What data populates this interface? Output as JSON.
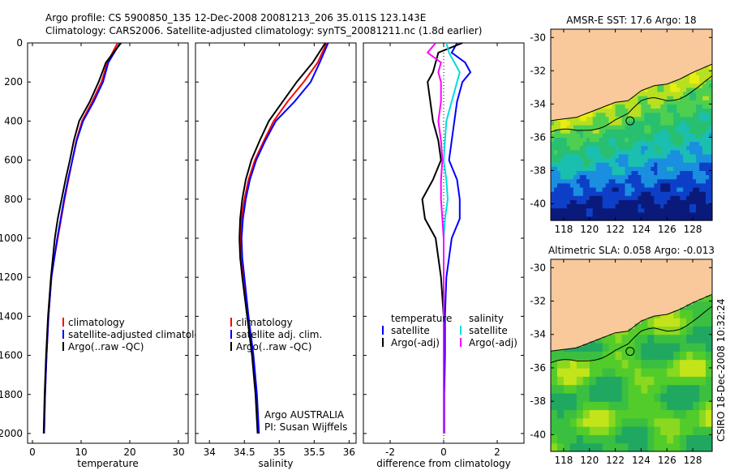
{
  "header": {
    "line1": "Argo profile: CS 5900850_135 12-Dec-2008 20081213_206 35.011S 123.143E",
    "line2": "Climatology: CARS2006. Satellite-adjusted climatology: synTS_20081211.nc (1.8d earlier)"
  },
  "footer": {
    "credit_line1": "Argo AUSTRALIA",
    "credit_line2": "PI: Susan Wijffels",
    "stamp": "CSIRO 18-Dec-2008 10:32:24"
  },
  "colors": {
    "climatology": "#ff0000",
    "satellite": "#0000ff",
    "argo": "#000000",
    "salinity_satellite": "#00dddd",
    "salinity_argo": "#ff00ff",
    "land": "#f9c89b"
  },
  "chart_data": [
    {
      "type": "line",
      "id": "temperature",
      "xlabel": "temperature",
      "ylabel": "",
      "xlim": [
        -1,
        32
      ],
      "ylim": [
        2050,
        0
      ],
      "xticks": [
        0,
        10,
        20,
        30
      ],
      "yticks": [
        0,
        200,
        400,
        600,
        800,
        1000,
        1200,
        1400,
        1600,
        1800,
        2000
      ],
      "legend": [
        "climatology",
        "satellite-adjusted climatology",
        "Argo(..raw -QC)"
      ],
      "legend_position": "center-right",
      "series": [
        {
          "name": "climatology",
          "color": "#ff0000",
          "depth": [
            0,
            100,
            200,
            300,
            400,
            500,
            600,
            700,
            800,
            900,
            1000,
            1100,
            1200,
            1400,
            1600,
            1800,
            2000
          ],
          "values": [
            17.5,
            15.4,
            14.2,
            12.3,
            10.2,
            9.0,
            8.2,
            7.4,
            6.6,
            5.9,
            5.2,
            4.5,
            3.9,
            3.3,
            2.9,
            2.6,
            2.4
          ]
        },
        {
          "name": "satellite-adjusted climatology",
          "color": "#0000ff",
          "depth": [
            0,
            100,
            200,
            300,
            400,
            500,
            600,
            700,
            800,
            900,
            1000,
            1100,
            1200,
            1400,
            1600,
            1800,
            2000
          ],
          "values": [
            18.0,
            15.6,
            14.5,
            12.6,
            10.4,
            9.1,
            8.2,
            7.3,
            6.5,
            5.8,
            5.1,
            4.5,
            3.9,
            3.3,
            2.9,
            2.6,
            2.4
          ]
        },
        {
          "name": "Argo(..raw -QC)",
          "color": "#000000",
          "depth": [
            0,
            100,
            200,
            300,
            400,
            500,
            600,
            700,
            800,
            900,
            1000,
            1100,
            1200,
            1400,
            1600,
            1800,
            2000
          ],
          "values": [
            18.2,
            15.1,
            13.6,
            11.8,
            9.6,
            8.5,
            7.7,
            6.8,
            6.0,
            5.2,
            4.6,
            4.2,
            3.8,
            3.2,
            2.8,
            2.5,
            2.3
          ]
        }
      ]
    },
    {
      "type": "line",
      "id": "salinity",
      "xlabel": "salinity",
      "ylabel": "",
      "xlim": [
        33.8,
        36.1
      ],
      "ylim": [
        2050,
        0
      ],
      "xticks": [
        34,
        34.5,
        35,
        35.5,
        36
      ],
      "yticks": [
        0,
        200,
        400,
        600,
        800,
        1000,
        1200,
        1400,
        1600,
        1800,
        2000
      ],
      "legend": [
        "climatology",
        "satellite adj. clim.",
        "Argo(..raw -QC)"
      ],
      "legend_position": "center-right",
      "series": [
        {
          "name": "climatology",
          "color": "#ff0000",
          "depth": [
            0,
            100,
            200,
            300,
            400,
            500,
            600,
            700,
            800,
            900,
            1000,
            1100,
            1200,
            1400,
            1600,
            1800,
            2000
          ],
          "values": [
            35.68,
            35.55,
            35.35,
            35.12,
            34.92,
            34.78,
            34.65,
            34.56,
            34.5,
            34.46,
            34.44,
            34.45,
            34.48,
            34.55,
            34.62,
            34.67,
            34.7
          ]
        },
        {
          "name": "satellite adj. clim.",
          "color": "#0000ff",
          "depth": [
            0,
            100,
            200,
            300,
            400,
            500,
            600,
            700,
            800,
            900,
            1000,
            1100,
            1200,
            1400,
            1600,
            1800,
            2000
          ],
          "values": [
            35.7,
            35.58,
            35.45,
            35.22,
            34.95,
            34.8,
            34.67,
            34.58,
            34.52,
            34.48,
            34.46,
            34.47,
            34.5,
            34.56,
            34.63,
            34.68,
            34.71
          ]
        },
        {
          "name": "Argo(..raw -QC)",
          "color": "#000000",
          "depth": [
            0,
            100,
            200,
            300,
            400,
            500,
            600,
            700,
            800,
            900,
            1000,
            1100,
            1200,
            1400,
            1600,
            1800,
            2000
          ],
          "values": [
            35.66,
            35.48,
            35.25,
            35.05,
            34.85,
            34.72,
            34.6,
            34.52,
            34.47,
            34.44,
            34.43,
            34.44,
            34.47,
            34.54,
            34.61,
            34.66,
            34.69
          ]
        }
      ]
    },
    {
      "type": "line",
      "id": "difference",
      "xlabel": "difference from climatology",
      "ylabel": "",
      "xlim": [
        -3,
        3
      ],
      "ylim": [
        2050,
        0
      ],
      "xticks": [
        -2,
        0,
        2
      ],
      "yticks": [
        0,
        200,
        400,
        600,
        800,
        1000,
        1200,
        1400,
        1600,
        1800,
        2000
      ],
      "legend_titles": [
        "temperature",
        "salinity"
      ],
      "legend": [
        "satellite",
        "Argo(-adj)",
        "satellite",
        "Argo(-adj)"
      ],
      "legend_position": "center",
      "series": [
        {
          "name": "satellite",
          "group": "temperature",
          "color": "#0000ff",
          "depth": [
            0,
            50,
            100,
            150,
            200,
            300,
            400,
            500,
            600,
            700,
            800,
            900,
            1000,
            1200,
            1400,
            1600,
            1800,
            2000
          ],
          "values": [
            0.5,
            0.3,
            0.8,
            1.0,
            0.7,
            0.5,
            0.4,
            0.3,
            0.2,
            0.5,
            0.6,
            0.6,
            0.3,
            0.1,
            0.05,
            0.05,
            0.02,
            0.02
          ]
        },
        {
          "name": "Argo(-adj)",
          "group": "temperature",
          "color": "#000000",
          "depth": [
            0,
            50,
            100,
            150,
            200,
            300,
            400,
            500,
            600,
            700,
            800,
            900,
            1000,
            1200,
            1400,
            1600,
            1800,
            2000
          ],
          "values": [
            0.7,
            -0.2,
            -0.3,
            -0.4,
            -0.6,
            -0.5,
            -0.4,
            -0.2,
            -0.1,
            -0.4,
            -0.8,
            -0.7,
            -0.3,
            -0.1,
            0.0,
            0.0,
            0.0,
            0.0
          ]
        },
        {
          "name": "satellite",
          "group": "salinity",
          "color": "#00dddd",
          "depth": [
            0,
            50,
            100,
            150,
            200,
            300,
            400,
            500,
            600,
            700,
            800,
            900,
            1000,
            1200,
            1400,
            1600,
            1800,
            2000
          ],
          "values": [
            0.1,
            0.2,
            0.4,
            0.6,
            0.5,
            0.3,
            0.1,
            0.05,
            0.0,
            0.1,
            0.15,
            0.05,
            0.0,
            0.0,
            0.0,
            0.0,
            0.0,
            0.0
          ]
        },
        {
          "name": "Argo(-adj)",
          "group": "salinity",
          "color": "#ff00ff",
          "depth": [
            0,
            50,
            100,
            150,
            200,
            300,
            400,
            500,
            600,
            700,
            800,
            900,
            1000,
            1200,
            1400,
            1600,
            1800,
            2000
          ],
          "values": [
            -0.3,
            -0.6,
            -0.1,
            -0.2,
            -0.1,
            -0.1,
            -0.2,
            -0.1,
            -0.05,
            -0.1,
            -0.1,
            -0.05,
            0.0,
            0.0,
            0.0,
            0.0,
            0.0,
            0.0
          ]
        }
      ]
    },
    {
      "type": "heatmap",
      "id": "sst_map",
      "title": "AMSR-E SST: 17.6 Argo: 18",
      "xlim": [
        117,
        129.5
      ],
      "ylim": [
        -41,
        -29.5
      ],
      "xticks": [
        118,
        120,
        122,
        124,
        126,
        128
      ],
      "yticks": [
        -30,
        -32,
        -34,
        -36,
        -38,
        -40
      ],
      "argo_position": [
        123.143,
        -35.011
      ]
    },
    {
      "type": "heatmap",
      "id": "sla_map",
      "title": "Altimetric SLA: 0.058 Argo: -0.013",
      "xlim": [
        117,
        129.5
      ],
      "ylim": [
        -41,
        -29.5
      ],
      "xticks": [
        118,
        120,
        122,
        124,
        126,
        128
      ],
      "yticks": [
        -30,
        -32,
        -34,
        -36,
        -38,
        -40
      ],
      "argo_position": [
        123.143,
        -35.011
      ]
    }
  ]
}
